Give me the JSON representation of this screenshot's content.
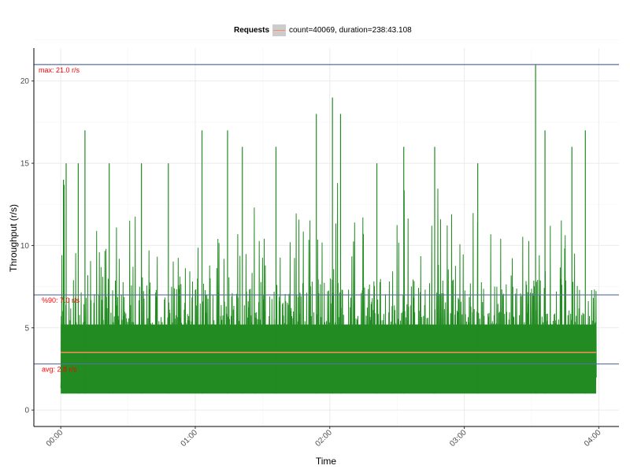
{
  "chart_data": {
    "type": "line",
    "xlabel": "Time",
    "ylabel": "Throughput (r/s)",
    "x_ticks": [
      "00:00",
      "01:00",
      "02:00",
      "03:00",
      "04:00"
    ],
    "y_ticks": [
      0,
      5,
      10,
      15,
      20
    ],
    "xlim_hours": [
      -0.2,
      4.15
    ],
    "ylim": [
      -1,
      22
    ],
    "legend": {
      "title": "Requests",
      "entry": "count=40069, duration=238:43.108",
      "placement": "top"
    },
    "series": [
      {
        "name": "count=40069, duration=238:43.108",
        "color": "#228b22",
        "x_start_hours": 0,
        "x_end_hours": 3.98,
        "y_min": 1,
        "y_max": 21,
        "peaks": [
          {
            "x": 0.02,
            "y": 14
          },
          {
            "x": 0.04,
            "y": 15
          },
          {
            "x": 0.13,
            "y": 15
          },
          {
            "x": 0.18,
            "y": 17
          },
          {
            "x": 0.36,
            "y": 15
          },
          {
            "x": 0.6,
            "y": 15
          },
          {
            "x": 0.8,
            "y": 15
          },
          {
            "x": 1.05,
            "y": 17
          },
          {
            "x": 1.24,
            "y": 17
          },
          {
            "x": 1.35,
            "y": 16
          },
          {
            "x": 1.6,
            "y": 16
          },
          {
            "x": 1.9,
            "y": 18
          },
          {
            "x": 2.02,
            "y": 19
          },
          {
            "x": 2.08,
            "y": 18
          },
          {
            "x": 2.35,
            "y": 15
          },
          {
            "x": 2.55,
            "y": 16
          },
          {
            "x": 2.78,
            "y": 16
          },
          {
            "x": 3.1,
            "y": 15
          },
          {
            "x": 3.53,
            "y": 21
          },
          {
            "x": 3.6,
            "y": 17
          },
          {
            "x": 3.8,
            "y": 16
          },
          {
            "x": 3.9,
            "y": 17
          }
        ]
      }
    ],
    "reference_lines": [
      {
        "kind": "avg",
        "label": "avg: 2.8 r/s",
        "value": 2.8,
        "color": "#5a6fa0"
      },
      {
        "kind": "p90",
        "label": "%90: 7.0 r/s",
        "value": 7.0,
        "color": "#5a6fa0"
      },
      {
        "kind": "max",
        "label": "max: 21.0 r/s",
        "value": 21.0,
        "color": "#5a6fa0"
      },
      {
        "kind": "mean",
        "label": "",
        "value": 3.5,
        "color": "#ff8c5a"
      }
    ],
    "grid": true,
    "ref_label_color": "#ff0000"
  }
}
